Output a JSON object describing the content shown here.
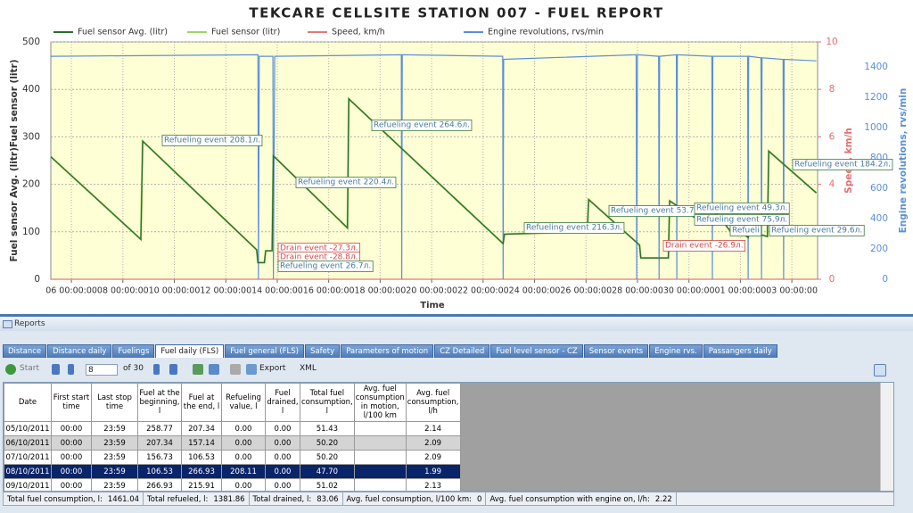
{
  "chart_data": {
    "type": "line",
    "title": "TEKCARE CELLSITE STATION 007 - FUEL REPORT",
    "x_label": "Time",
    "y_label": "Fuel sensor Avg. (litr)Fuel sensor (litr)",
    "y2_label": "Speed, km/h",
    "y3_label": "Engine revolutions, rvs/min",
    "x": [
      0.2,
      3.7,
      3.77,
      8.2,
      8.25,
      8.5,
      8.55,
      8.8,
      8.85,
      11.73,
      11.78,
      17.78,
      17.83,
      21.05,
      21.1,
      23.08,
      23.13,
      24.2,
      24.25,
      25.5,
      25.55,
      26.0,
      26.05,
      26.7,
      26.75,
      27.3,
      27.35,
      28.05,
      28.1,
      29.95
    ],
    "xlim": [
      0.2,
      30
    ],
    "xticks": [
      {
        "value": 1,
        "label": "06 00:00:00"
      },
      {
        "value": 3,
        "label": "08 00:00:00"
      },
      {
        "value": 5,
        "label": "10 00:00:00"
      },
      {
        "value": 7,
        "label": "12 00:00:00"
      },
      {
        "value": 9,
        "label": "14 00:00:00"
      },
      {
        "value": 11,
        "label": "16 00:00:00"
      },
      {
        "value": 13,
        "label": "18 00:00:00"
      },
      {
        "value": 15,
        "label": "20 00:00:00"
      },
      {
        "value": 17,
        "label": "22 00:00:00"
      },
      {
        "value": 19,
        "label": "24 00:00:00"
      },
      {
        "value": 21,
        "label": "26 00:00:00"
      },
      {
        "value": 23,
        "label": "28 00:00:00"
      },
      {
        "value": 25,
        "label": "30 00:00:00"
      },
      {
        "value": 27,
        "label": "01 00:00:00"
      },
      {
        "value": 29,
        "label": "03 00:00:00"
      }
    ],
    "ylim": [
      0,
      500
    ],
    "yticks": [
      0,
      100,
      200,
      300,
      400,
      500
    ],
    "y2lim": [
      0,
      10
    ],
    "y2ticks": [
      0,
      2,
      4,
      6,
      8,
      10
    ],
    "y3lim": [
      0,
      1565
    ],
    "y3ticks": [
      0,
      200,
      400,
      600,
      800,
      1000,
      1200,
      1400
    ],
    "grid": true,
    "series": [
      {
        "name": "Fuel sensor Avg. (litr)",
        "color": "#2f6b2f",
        "values": [
          258,
          84,
          291,
          62,
          35,
          35,
          60,
          60,
          260,
          108,
          380,
          75,
          95,
          100,
          168,
          72,
          45,
          45,
          165,
          120,
          135,
          118,
          140,
          95,
          110,
          88,
          100,
          90,
          270,
          182
        ]
      },
      {
        "name": "Fuel sensor (litr)",
        "color": "#9ed36a",
        "values": [
          258,
          84,
          291,
          62,
          35,
          35,
          60,
          60,
          260,
          108,
          380,
          75,
          95,
          100,
          168,
          72,
          45,
          45,
          165,
          120,
          135,
          118,
          140,
          95,
          110,
          88,
          100,
          90,
          270,
          182
        ]
      },
      {
        "name": "Speed, km/h",
        "color": "#e07a7a",
        "axis": "y2",
        "x": [
          0.2,
          29.95
        ],
        "values": [
          0,
          0
        ]
      },
      {
        "name": "Engine revolutions, rvs/min",
        "color": "#5b8fd6",
        "axis": "y3",
        "x": [
          0.2,
          8.25,
          8.27,
          8.3,
          8.83,
          8.85,
          8.9,
          13.82,
          13.84,
          13.86,
          17.76,
          17.78,
          17.8,
          22.95,
          22.97,
          23.0,
          23.82,
          23.84,
          23.86,
          24.51,
          24.53,
          24.55,
          25.89,
          25.91,
          25.93,
          27.28,
          27.3,
          27.32,
          27.8,
          27.82,
          27.84,
          28.66,
          28.68,
          28.7,
          29.95
        ],
        "values": [
          1470,
          1480,
          0,
          1470,
          1470,
          0,
          1470,
          1480,
          0,
          1480,
          1470,
          0,
          1450,
          1480,
          0,
          1480,
          1470,
          0,
          1470,
          1480,
          0,
          1480,
          1470,
          0,
          1470,
          1470,
          0,
          1470,
          1460,
          0,
          1460,
          1450,
          0,
          1450,
          1440
        ]
      }
    ],
    "annotations": [
      {
        "text": "Refueling event 208.1л.",
        "color": "#3d7a3d"
      },
      {
        "text": "Refueling event 220.4л.",
        "color": "#3d7a3d"
      },
      {
        "text": "Refueling event 264.6л.",
        "color": "#3d7a3d"
      },
      {
        "text": "Drain event -27.3л.",
        "color": "#d04848"
      },
      {
        "text": "Drain event -28.8л.",
        "color": "#d04848"
      },
      {
        "text": "Refueling event 26.7л.",
        "color": "#3d7a3d"
      },
      {
        "text": "Refueling event 216.3л.",
        "color": "#3d7a3d"
      },
      {
        "text": "Refueling event 53.7л.",
        "color": "#3d7a3d"
      },
      {
        "text": "Drain event -26.9л.",
        "color": "#d04848"
      },
      {
        "text": "Refueling event 49.3л.",
        "color": "#3d7a3d"
      },
      {
        "text": "Refueling event 75.9л.",
        "color": "#3d7a3d"
      },
      {
        "text": "Refueli",
        "color": "#3d7a3d"
      },
      {
        "text": "Refueling event 29.6л.",
        "color": "#3d7a3d"
      },
      {
        "text": "Refueling event 184.2л.",
        "color": "#3d7a3d"
      }
    ]
  },
  "reports": {
    "title": "Reports",
    "tabs": [
      "Distance",
      "Distance daily",
      "Fuelings",
      "Fuel daily (FLS)",
      "Fuel general (FLS)",
      "Safety",
      "Parameters of motion",
      "CZ Detailed",
      "Fuel level sensor - CZ",
      "Sensor events",
      "Engine rvs.",
      "Passangers daily"
    ],
    "active_tab": 3,
    "toolbar": {
      "start": "Start",
      "page": "8",
      "of": "of 30",
      "export": "Export",
      "xml": "XML"
    },
    "table": {
      "columns": [
        "Date",
        "First start time",
        "Last stop time",
        "Fuel at the beginning, l",
        "Fuel at the end, l",
        "Refueling value, l",
        "Fuel drained, l",
        "Total fuel consumption, l",
        "Avg. fuel consumption in motion, l/100 km",
        "Avg. fuel consumption, l/h"
      ],
      "rows": [
        [
          "05/10/2011",
          "00:00",
          "23:59",
          "258.77",
          "207.34",
          "0.00",
          "0.00",
          "51.43",
          null,
          "2.14"
        ],
        [
          "06/10/2011",
          "00:00",
          "23:59",
          "207.34",
          "157.14",
          "0.00",
          "0.00",
          "50.20",
          null,
          "2.09"
        ],
        [
          "07/10/2011",
          "00:00",
          "23:59",
          "156.73",
          "106.53",
          "0.00",
          "0.00",
          "50.20",
          null,
          "2.09"
        ],
        [
          "08/10/2011",
          "00:00",
          "23:59",
          "106.53",
          "266.93",
          "208.11",
          "0.00",
          "47.70",
          null,
          "1.99"
        ],
        [
          "09/10/2011",
          "00:00",
          "23:59",
          "266.93",
          "215.91",
          "0.00",
          "0.00",
          "51.02",
          null,
          "2.13"
        ]
      ],
      "selected_row": 3
    },
    "footer": [
      {
        "label": "Total fuel consumption, l:",
        "value": "1461.04"
      },
      {
        "label": "Total refueled, l:",
        "value": "1381.86"
      },
      {
        "label": "Total drained, l:",
        "value": "83.06"
      },
      {
        "label": "Avg. fuel consumption, l/100 km:",
        "value": "0"
      },
      {
        "label": "Avg. fuel consumption with engine on, l/h:",
        "value": "2.22"
      }
    ]
  }
}
